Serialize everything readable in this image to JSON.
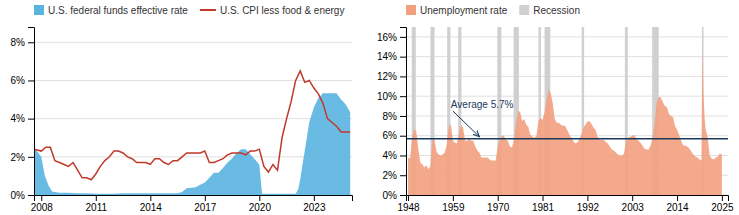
{
  "chart_data": [
    {
      "type": "line",
      "legend": "top",
      "grid": true,
      "xlim": [
        2007.6,
        2025.1
      ],
      "xticks": [
        2008,
        2011,
        2014,
        2017,
        2020,
        2023
      ],
      "ylim": [
        0,
        0.088
      ],
      "yticks": [
        {
          "value": 0,
          "label": "0%"
        },
        {
          "value": 0.02,
          "label": "2%"
        },
        {
          "value": 0.04,
          "label": "4%"
        },
        {
          "value": 0.06,
          "label": "6%"
        },
        {
          "value": 0.08,
          "label": "8%"
        }
      ],
      "series": [
        {
          "name": "U.S. federal funds effective rate",
          "type": "area",
          "color": "#5ab4e0",
          "x": [
            2007.6,
            2008.0,
            2008.2,
            2008.4,
            2008.6,
            2009.0,
            2009.5,
            2010.0,
            2010.5,
            2011.0,
            2011.5,
            2012.0,
            2012.5,
            2013.0,
            2013.5,
            2014.0,
            2014.5,
            2015.0,
            2015.5,
            2015.75,
            2016.0,
            2016.5,
            2016.75,
            2017.0,
            2017.25,
            2017.5,
            2017.75,
            2018.0,
            2018.25,
            2018.5,
            2018.75,
            2019.0,
            2019.25,
            2019.5,
            2019.75,
            2020.0,
            2020.15,
            2020.25,
            2020.5,
            2020.75,
            2021.0,
            2021.25,
            2021.5,
            2021.75,
            2022.0,
            2022.15,
            2022.25,
            2022.5,
            2022.75,
            2023.0,
            2023.25,
            2023.5,
            2023.75,
            2024.0,
            2024.25,
            2024.5,
            2024.75,
            2025.0
          ],
          "values": [
            0.025,
            0.02,
            0.01,
            0.005,
            0.0018,
            0.0012,
            0.0012,
            0.0009,
            0.0009,
            0.0007,
            0.0007,
            0.0007,
            0.0009,
            0.0009,
            0.0009,
            0.0009,
            0.0009,
            0.0009,
            0.0009,
            0.0016,
            0.0036,
            0.004,
            0.0054,
            0.0066,
            0.0091,
            0.0116,
            0.0116,
            0.0141,
            0.017,
            0.0191,
            0.022,
            0.024,
            0.024,
            0.0213,
            0.0187,
            0.0158,
            0.0006,
            0.0006,
            0.0006,
            0.0006,
            0.0006,
            0.0006,
            0.0006,
            0.0006,
            0.0006,
            0.0033,
            0.0083,
            0.0233,
            0.0383,
            0.0458,
            0.0508,
            0.0533,
            0.0533,
            0.0533,
            0.0533,
            0.05,
            0.0475,
            0.0433
          ]
        },
        {
          "name": "U.S. CPI less food & energy",
          "type": "line",
          "color": "#c0392b",
          "x": [
            2007.6,
            2008.0,
            2008.25,
            2008.5,
            2008.75,
            2009.0,
            2009.25,
            2009.5,
            2009.75,
            2010.0,
            2010.25,
            2010.5,
            2010.75,
            2011.0,
            2011.25,
            2011.5,
            2011.75,
            2012.0,
            2012.25,
            2012.5,
            2012.75,
            2013.0,
            2013.25,
            2013.5,
            2013.75,
            2014.0,
            2014.25,
            2014.5,
            2014.75,
            2015.0,
            2015.25,
            2015.5,
            2015.75,
            2016.0,
            2016.25,
            2016.5,
            2016.75,
            2017.0,
            2017.25,
            2017.5,
            2017.75,
            2018.0,
            2018.25,
            2018.5,
            2018.75,
            2019.0,
            2019.25,
            2019.5,
            2019.75,
            2020.0,
            2020.25,
            2020.5,
            2020.75,
            2021.0,
            2021.25,
            2021.5,
            2021.75,
            2022.0,
            2022.25,
            2022.5,
            2022.75,
            2023.0,
            2023.25,
            2023.5,
            2023.75,
            2024.0,
            2024.25,
            2024.5,
            2024.75,
            2025.0
          ],
          "values": [
            0.024,
            0.023,
            0.025,
            0.025,
            0.018,
            0.017,
            0.016,
            0.015,
            0.017,
            0.013,
            0.009,
            0.009,
            0.008,
            0.011,
            0.015,
            0.018,
            0.02,
            0.023,
            0.023,
            0.022,
            0.02,
            0.019,
            0.017,
            0.017,
            0.017,
            0.016,
            0.019,
            0.019,
            0.017,
            0.016,
            0.018,
            0.018,
            0.02,
            0.022,
            0.022,
            0.022,
            0.022,
            0.023,
            0.017,
            0.017,
            0.018,
            0.019,
            0.021,
            0.022,
            0.022,
            0.022,
            0.021,
            0.023,
            0.023,
            0.024,
            0.015,
            0.012,
            0.016,
            0.013,
            0.03,
            0.04,
            0.049,
            0.06,
            0.065,
            0.059,
            0.06,
            0.056,
            0.053,
            0.048,
            0.04,
            0.038,
            0.036,
            0.033,
            0.033,
            0.033
          ]
        }
      ]
    },
    {
      "type": "area",
      "legend": "top",
      "grid": true,
      "xlim": [
        1947.5,
        2026.5
      ],
      "xticks": [
        1948,
        1959,
        1970,
        1981,
        1992,
        2003,
        2014,
        2025
      ],
      "ylim": [
        0,
        0.17
      ],
      "yticks": [
        {
          "value": 0,
          "label": "0%"
        },
        {
          "value": 0.02,
          "label": "2%"
        },
        {
          "value": 0.04,
          "label": "4%"
        },
        {
          "value": 0.06,
          "label": "6%"
        },
        {
          "value": 0.08,
          "label": "8%"
        },
        {
          "value": 0.1,
          "label": "10%"
        },
        {
          "value": 0.12,
          "label": "12%"
        },
        {
          "value": 0.14,
          "label": "14%"
        },
        {
          "value": 0.16,
          "label": "16%"
        }
      ],
      "series": [
        {
          "name": "Unemployment rate",
          "type": "area",
          "color": "#f4a080",
          "x": [
            1948,
            1948.5,
            1949,
            1949.5,
            1950,
            1950.5,
            1951,
            1951.5,
            1952,
            1952.5,
            1953,
            1953.5,
            1954,
            1954.5,
            1955,
            1955.5,
            1956,
            1956.5,
            1957,
            1957.5,
            1958,
            1958.5,
            1959,
            1959.5,
            1960,
            1960.5,
            1961,
            1961.5,
            1962,
            1962.5,
            1963,
            1963.5,
            1964,
            1964.5,
            1965,
            1965.5,
            1966,
            1966.5,
            1967,
            1967.5,
            1968,
            1968.5,
            1969,
            1969.5,
            1970,
            1970.5,
            1971,
            1971.5,
            1972,
            1972.5,
            1973,
            1973.5,
            1974,
            1974.5,
            1975,
            1975.5,
            1976,
            1976.5,
            1977,
            1977.5,
            1978,
            1978.5,
            1979,
            1979.5,
            1980,
            1980.5,
            1981,
            1981.5,
            1982,
            1982.5,
            1983,
            1983.5,
            1984,
            1984.5,
            1985,
            1985.5,
            1986,
            1986.5,
            1987,
            1987.5,
            1988,
            1988.5,
            1989,
            1989.5,
            1990,
            1990.5,
            1991,
            1991.5,
            1992,
            1992.5,
            1993,
            1993.5,
            1994,
            1994.5,
            1995,
            1995.5,
            1996,
            1996.5,
            1997,
            1997.5,
            1998,
            1998.5,
            1999,
            1999.5,
            2000,
            2000.5,
            2001,
            2001.5,
            2002,
            2002.5,
            2003,
            2003.5,
            2004,
            2004.5,
            2005,
            2005.5,
            2006,
            2006.5,
            2007,
            2007.5,
            2008,
            2008.5,
            2009,
            2009.5,
            2010,
            2010.5,
            2011,
            2011.5,
            2012,
            2012.5,
            2013,
            2013.5,
            2014,
            2014.5,
            2015,
            2015.5,
            2016,
            2016.5,
            2017,
            2017.5,
            2018,
            2018.5,
            2019,
            2019.5,
            2020,
            2020.2,
            2020.5,
            2020.75,
            2021,
            2021.5,
            2022,
            2022.5,
            2023,
            2023.5,
            2024,
            2024.5,
            2025
          ],
          "values": [
            0.038,
            0.037,
            0.059,
            0.066,
            0.065,
            0.048,
            0.033,
            0.031,
            0.028,
            0.03,
            0.026,
            0.029,
            0.058,
            0.055,
            0.044,
            0.041,
            0.04,
            0.041,
            0.043,
            0.051,
            0.068,
            0.072,
            0.055,
            0.053,
            0.052,
            0.063,
            0.071,
            0.068,
            0.055,
            0.055,
            0.057,
            0.055,
            0.055,
            0.049,
            0.045,
            0.043,
            0.038,
            0.038,
            0.038,
            0.038,
            0.036,
            0.035,
            0.035,
            0.035,
            0.049,
            0.055,
            0.06,
            0.06,
            0.056,
            0.055,
            0.049,
            0.048,
            0.056,
            0.072,
            0.085,
            0.084,
            0.075,
            0.077,
            0.071,
            0.069,
            0.061,
            0.059,
            0.058,
            0.06,
            0.075,
            0.078,
            0.076,
            0.084,
            0.097,
            0.107,
            0.103,
            0.093,
            0.077,
            0.073,
            0.073,
            0.071,
            0.07,
            0.07,
            0.066,
            0.062,
            0.058,
            0.055,
            0.052,
            0.053,
            0.056,
            0.061,
            0.068,
            0.071,
            0.074,
            0.075,
            0.072,
            0.068,
            0.066,
            0.059,
            0.056,
            0.056,
            0.056,
            0.054,
            0.052,
            0.049,
            0.046,
            0.045,
            0.043,
            0.041,
            0.04,
            0.04,
            0.042,
            0.055,
            0.058,
            0.059,
            0.06,
            0.061,
            0.057,
            0.055,
            0.053,
            0.05,
            0.047,
            0.046,
            0.046,
            0.05,
            0.058,
            0.073,
            0.093,
            0.099,
            0.099,
            0.094,
            0.09,
            0.089,
            0.082,
            0.08,
            0.079,
            0.07,
            0.066,
            0.061,
            0.055,
            0.05,
            0.05,
            0.049,
            0.047,
            0.044,
            0.041,
            0.039,
            0.038,
            0.036,
            0.035,
            0.147,
            0.102,
            0.079,
            0.067,
            0.059,
            0.04,
            0.037,
            0.036,
            0.038,
            0.039,
            0.042,
            0.041
          ]
        },
        {
          "name": "Recession",
          "type": "span",
          "color": "#d0d0d0",
          "values": [
            [
              1948.9,
              1949.9
            ],
            [
              1953.5,
              1954.5
            ],
            [
              1957.6,
              1958.4
            ],
            [
              1960.3,
              1961.1
            ],
            [
              1969.9,
              1970.9
            ],
            [
              1973.9,
              1975.2
            ],
            [
              1980.0,
              1980.6
            ],
            [
              1981.5,
              1982.9
            ],
            [
              1990.6,
              1991.2
            ],
            [
              2001.2,
              2001.9
            ],
            [
              2007.9,
              2009.5
            ],
            [
              2020.1,
              2020.5
            ]
          ]
        }
      ],
      "average": {
        "value": 0.057,
        "color": "#1a3a5c"
      },
      "annotations": [
        {
          "text": "Average 5.7%",
          "x": 1958.5,
          "y": 0.086,
          "arrow_x": 1965.5,
          "arrow_y": 0.059,
          "color": "#1a3a5c"
        }
      ]
    }
  ]
}
